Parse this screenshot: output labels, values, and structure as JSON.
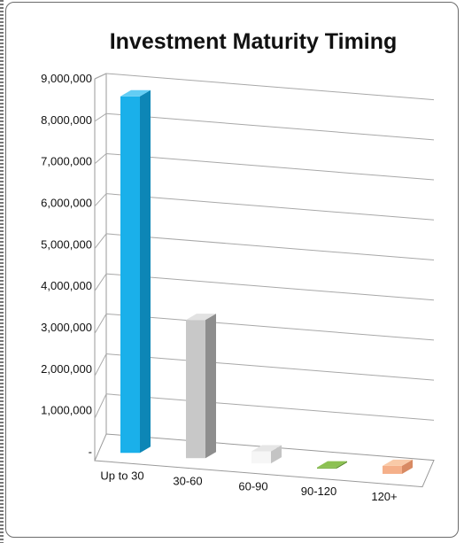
{
  "chart_data": {
    "type": "bar",
    "title": "Investment Maturity Timing",
    "categories": [
      "Up to 30",
      "30-60",
      "60-90",
      "90-120",
      "120+"
    ],
    "values": [
      8900000,
      3450000,
      300000,
      30000,
      200000
    ],
    "ylim": [
      0,
      9000000
    ],
    "yticks": [
      "-",
      "1,000,000",
      "2,000,000",
      "3,000,000",
      "4,000,000",
      "5,000,000",
      "6,000,000",
      "7,000,000",
      "8,000,000",
      "9,000,000"
    ],
    "xlabel": "",
    "ylabel": "",
    "grid": true,
    "legend": "none",
    "three_d": true,
    "colors": {
      "Up to 30": [
        "#1ab0ea",
        "#0d86b6",
        "#63cdf4"
      ],
      "30-60": [
        "#c8c8c8",
        "#8e8e8e",
        "#e2e2e2"
      ],
      "60-90": [
        "#f6f6f6",
        "#c4c4c4",
        "#e6e6e6"
      ],
      "90-120": [
        "#7ab043",
        "#5a8a2c",
        "#8cc152"
      ],
      "120+": [
        "#f5b08a",
        "#d88a63",
        "#f9caa8"
      ]
    }
  }
}
